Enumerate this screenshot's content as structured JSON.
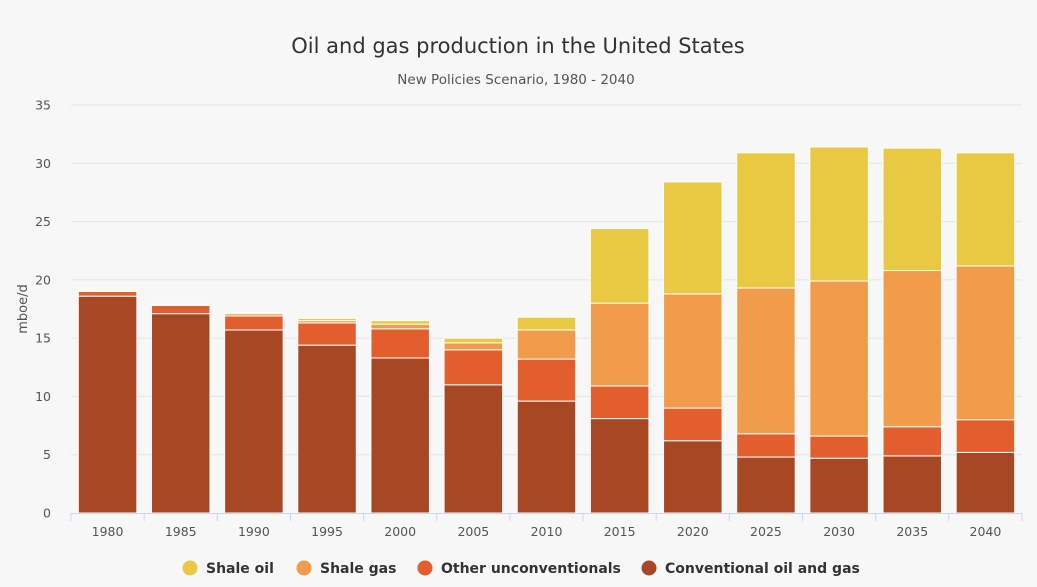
{
  "chart_data": {
    "type": "bar",
    "stacked": true,
    "title": "Oil and gas production in the United States",
    "subtitle": "New Policies Scenario, 1980 - 2040",
    "xlabel": "",
    "ylabel": "mboe/d",
    "ylim": [
      0,
      35
    ],
    "yticks": [
      0,
      5,
      10,
      15,
      20,
      25,
      30,
      35
    ],
    "grid": true,
    "legend_position": "bottom",
    "categories": [
      "1980",
      "1985",
      "1990",
      "1995",
      "2000",
      "2005",
      "2010",
      "2015",
      "2020",
      "2025",
      "2030",
      "2035",
      "2040"
    ],
    "series": [
      {
        "name": "Conventional oil and gas",
        "color": "#a84724",
        "values": [
          18.6,
          17.1,
          15.7,
          14.4,
          13.3,
          11.0,
          9.6,
          8.1,
          6.2,
          4.8,
          4.7,
          4.9,
          5.2
        ]
      },
      {
        "name": "Other unconventionals",
        "color": "#e35e2d",
        "values": [
          0.4,
          0.7,
          1.2,
          1.9,
          2.5,
          3.0,
          3.6,
          2.8,
          2.8,
          2.0,
          1.9,
          2.5,
          2.8
        ]
      },
      {
        "name": "Shale gas",
        "color": "#f09c4a",
        "values": [
          0.1,
          0.1,
          0.2,
          0.2,
          0.4,
          0.6,
          2.5,
          7.1,
          9.8,
          12.5,
          13.3,
          13.4,
          13.2
        ]
      },
      {
        "name": "Shale oil",
        "color": "#e9c842",
        "values": [
          0.1,
          0.1,
          0.1,
          0.2,
          0.3,
          0.4,
          1.1,
          6.4,
          9.6,
          11.6,
          11.5,
          10.5,
          9.7
        ]
      }
    ],
    "legend_order": [
      "Shale oil",
      "Shale gas",
      "Other unconventionals",
      "Conventional oil and gas"
    ]
  }
}
